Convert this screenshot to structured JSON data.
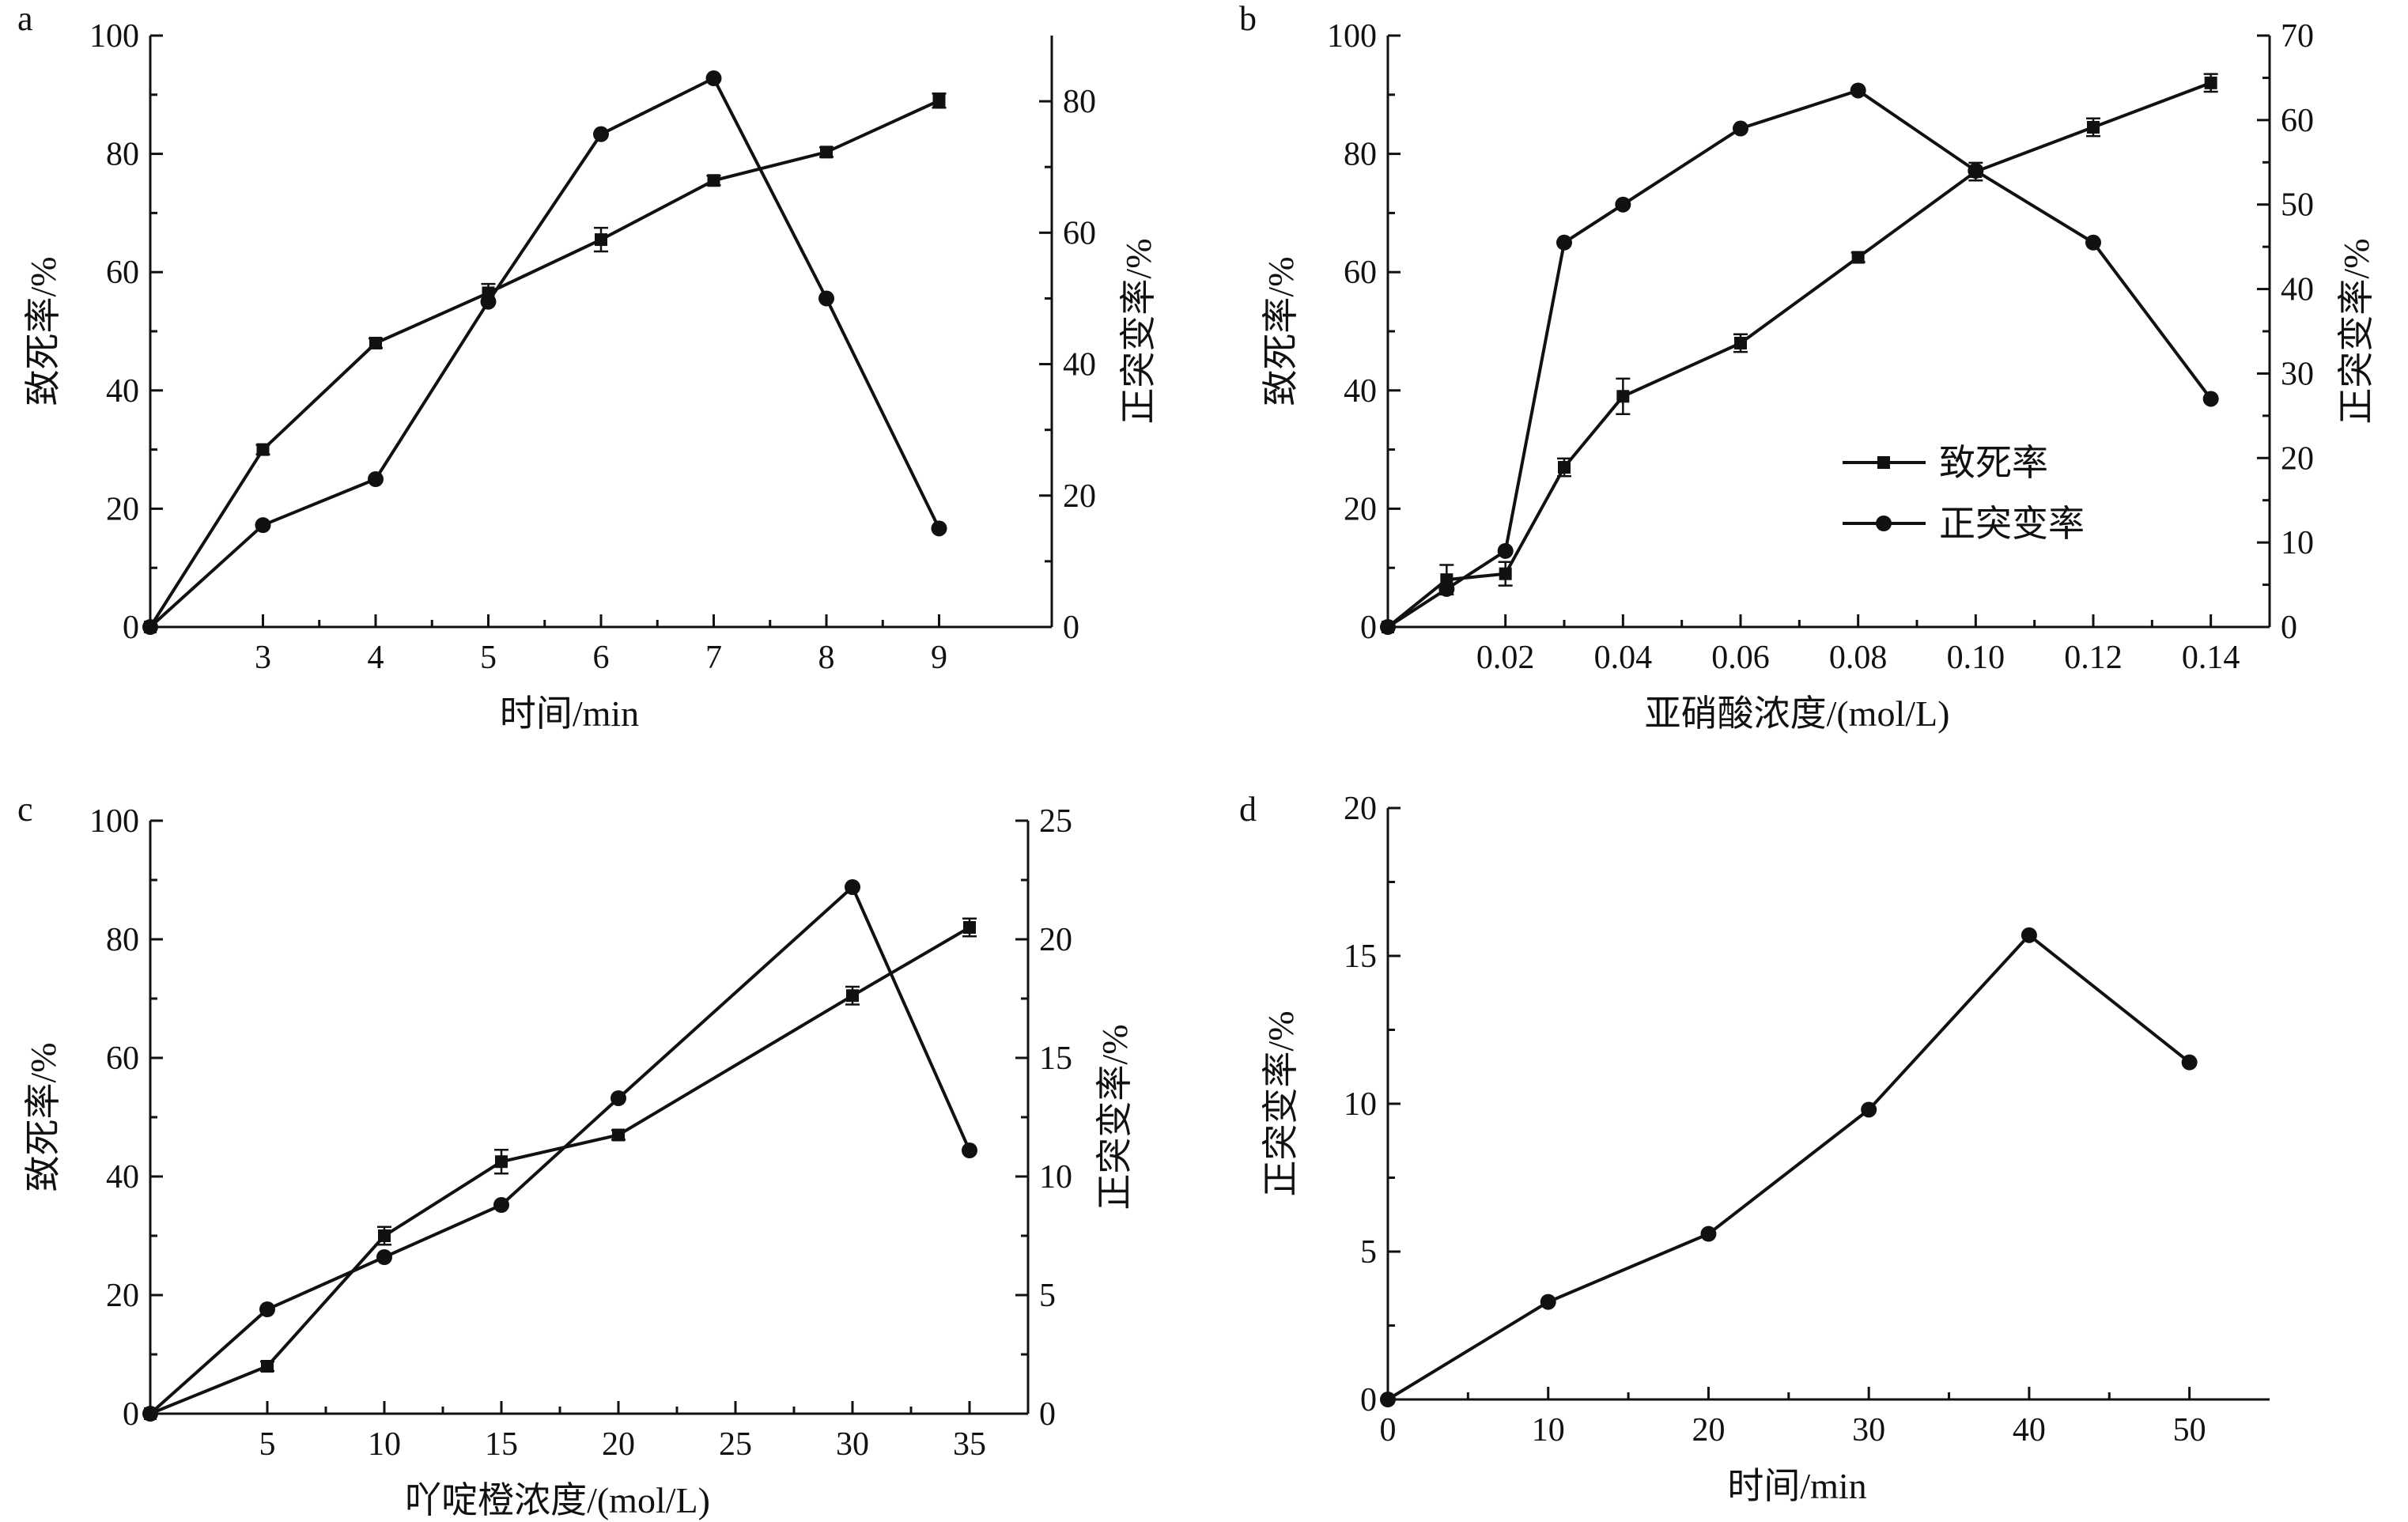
{
  "chart_data": [
    {
      "panel_label": "a",
      "type": "line",
      "xlabel": "时间/min",
      "ylabel": "致死率/%",
      "y2label": "正突变率/%",
      "xlim": [
        2,
        10
      ],
      "xticks": [
        3,
        4,
        5,
        6,
        7,
        8,
        9
      ],
      "xtick_labels": [
        "3",
        "4",
        "5",
        "6",
        "7",
        "8",
        "9"
      ],
      "ylim": [
        0,
        100
      ],
      "yticks": [
        0,
        20,
        40,
        60,
        80,
        100
      ],
      "y2lim": [
        0,
        90
      ],
      "y2ticks": [
        0,
        20,
        40,
        60,
        80
      ],
      "series": [
        {
          "name": "致死率",
          "axis": "left",
          "marker": "square",
          "x": [
            2,
            3,
            4,
            5,
            6,
            7,
            8,
            9
          ],
          "values": [
            0,
            30,
            48,
            56.5,
            65.5,
            75.5,
            80.3,
            89
          ],
          "errors": [
            0,
            0.8,
            0.8,
            1.5,
            2,
            0.8,
            0.8,
            1.2
          ]
        },
        {
          "name": "正突变率",
          "axis": "right",
          "marker": "circle",
          "x": [
            2,
            3,
            4,
            5,
            6,
            7,
            8,
            9
          ],
          "values": [
            0,
            15.5,
            22.5,
            49.5,
            75,
            83.5,
            50,
            15
          ]
        }
      ]
    },
    {
      "panel_label": "b",
      "type": "line",
      "xlabel": "亚硝酸浓度/(mol/L)",
      "ylabel": "致死率/%",
      "y2label": "正突变率/%",
      "xlim": [
        0,
        0.15
      ],
      "xticks": [
        0.02,
        0.04,
        0.06,
        0.08,
        0.1,
        0.12,
        0.14
      ],
      "xtick_labels": [
        "0.02",
        "0.04",
        "0.06",
        "0.08",
        "0.10",
        "0.12",
        "0.14"
      ],
      "ylim": [
        0,
        100
      ],
      "yticks": [
        0,
        20,
        40,
        60,
        80,
        100
      ],
      "y2lim": [
        0,
        70
      ],
      "y2ticks": [
        0,
        10,
        20,
        30,
        40,
        50,
        60,
        70
      ],
      "legend": {
        "position": "center-right",
        "entries": [
          "致死率",
          "正突变率"
        ]
      },
      "series": [
        {
          "name": "致死率",
          "axis": "left",
          "marker": "square",
          "x": [
            0,
            0.01,
            0.02,
            0.03,
            0.04,
            0.06,
            0.08,
            0.1,
            0.12,
            0.14
          ],
          "values": [
            0,
            8,
            9,
            27,
            39,
            48,
            62.5,
            77,
            84.5,
            92
          ],
          "errors": [
            0,
            2.5,
            2,
            1.5,
            3,
            1.5,
            0.8,
            1.5,
            1.5,
            1.5
          ]
        },
        {
          "name": "正突变率",
          "axis": "right",
          "marker": "circle",
          "x": [
            0,
            0.01,
            0.02,
            0.03,
            0.04,
            0.06,
            0.08,
            0.1,
            0.12,
            0.14
          ],
          "values": [
            0,
            4.5,
            9,
            45.5,
            50,
            59,
            63.5,
            54,
            45.5,
            27
          ]
        }
      ]
    },
    {
      "panel_label": "c",
      "type": "line",
      "xlabel": "吖啶橙浓度/(mol/L)",
      "ylabel": "致死率/%",
      "y2label": "正突变率/%",
      "xlim": [
        0,
        37.5
      ],
      "xticks": [
        5,
        10,
        15,
        20,
        25,
        30,
        35
      ],
      "xtick_labels": [
        "5",
        "10",
        "15",
        "20",
        "25",
        "30",
        "35"
      ],
      "ylim": [
        0,
        100
      ],
      "yticks": [
        0,
        20,
        40,
        60,
        80,
        100
      ],
      "y2lim": [
        0,
        25
      ],
      "y2ticks": [
        0,
        5,
        10,
        15,
        20,
        25
      ],
      "series": [
        {
          "name": "致死率",
          "axis": "left",
          "marker": "square",
          "x": [
            0,
            5,
            10,
            15,
            20,
            30,
            35
          ],
          "values": [
            0,
            8,
            30,
            42.5,
            47,
            70.5,
            82
          ],
          "errors": [
            0,
            0.8,
            1.5,
            2,
            0.8,
            1.5,
            1.5
          ]
        },
        {
          "name": "正突变率",
          "axis": "right",
          "marker": "circle",
          "x": [
            0,
            5,
            10,
            15,
            20,
            30,
            35
          ],
          "values": [
            0,
            4.4,
            6.6,
            8.8,
            13.3,
            22.2,
            11.1
          ]
        }
      ]
    },
    {
      "panel_label": "d",
      "type": "line",
      "xlabel": "时间/min",
      "ylabel": "正突变率/%",
      "xlim": [
        0,
        55
      ],
      "xticks": [
        0,
        10,
        20,
        30,
        40,
        50
      ],
      "xtick_labels": [
        "0",
        "10",
        "20",
        "30",
        "40",
        "50"
      ],
      "ylim": [
        0,
        20
      ],
      "yticks": [
        0,
        5,
        10,
        15,
        20
      ],
      "series": [
        {
          "name": "正突变率",
          "axis": "left",
          "marker": "circle",
          "x": [
            0,
            10,
            20,
            30,
            40,
            50
          ],
          "values": [
            0,
            3.3,
            5.6,
            9.8,
            15.7,
            11.4
          ]
        }
      ]
    }
  ]
}
